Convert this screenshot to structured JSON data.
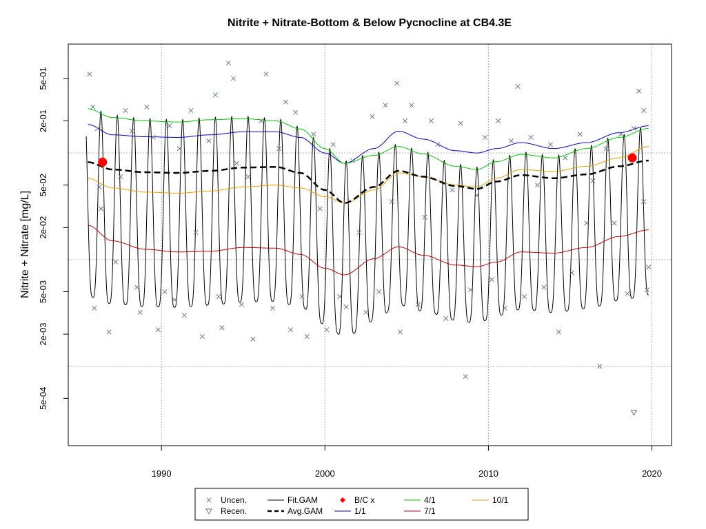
{
  "chart_data": {
    "type": "line",
    "title": "Nitrite + Nitrate-Bottom & Below Pycnocline at CB4.3E",
    "xlabel": "",
    "ylabel": "Nitrite + Nitrate [mg/L]",
    "y_scale": "log",
    "xlim": [
      1984.3,
      2021.2
    ],
    "ylim": [
      0.00018,
      1.05
    ],
    "x_ticks": [
      1990,
      2000,
      2010,
      2020
    ],
    "x_tick_labels": [
      "1990",
      "2000",
      "2010",
      "2020"
    ],
    "y_ticks": [
      0.0005,
      0.002,
      0.005,
      0.02,
      0.05,
      0.2,
      0.5
    ],
    "y_tick_labels": [
      "5e-04",
      "2e-03",
      "5e-03",
      "2e-02",
      "5e-02",
      "2e-01",
      "5e-01"
    ],
    "h_gridlines": [
      0.001,
      0.01,
      0.1
    ],
    "v_gridlines": [
      1990,
      2000,
      2010,
      2020
    ],
    "grid": true,
    "legend_position": "bottom-center",
    "colors": {
      "uncen": "#6b7a8f",
      "fit_gam": "#000000",
      "avg_gam": "#000000",
      "bc": "#ff0000",
      "d1_1": "#0000cc",
      "d4_1": "#00cc00",
      "d7_1": "#cc0000",
      "d10_1": "#e6a000"
    },
    "legend": [
      {
        "label": "Uncen.",
        "kind": "x-marker",
        "color": "#6b7a8f"
      },
      {
        "label": "Recen.",
        "kind": "triangle-marker",
        "color": "#6b7a8f"
      },
      {
        "label": "Fit.GAM",
        "kind": "solid",
        "color": "#000000"
      },
      {
        "label": "Avg.GAM",
        "kind": "dashed",
        "color": "#000000"
      },
      {
        "label": "B/C x",
        "kind": "diamond",
        "color": "#ff0000"
      },
      {
        "label": "1/1",
        "kind": "solid",
        "color": "#0000cc"
      },
      {
        "label": "4/1",
        "kind": "solid",
        "color": "#00cc00"
      },
      {
        "label": "7/1",
        "kind": "solid",
        "color": "#cc0000"
      },
      {
        "label": "10/1",
        "kind": "solid",
        "color": "#e6a000"
      }
    ],
    "series": [
      {
        "name": "1/1",
        "x": [
          1985.5,
          1987,
          1989,
          1991,
          1993,
          1995,
          1997,
          1998.5,
          2000,
          2001.2,
          2003,
          2004.5,
          2006,
          2008,
          2009.3,
          2010.5,
          2012,
          2014,
          2016,
          2018,
          2019.8
        ],
        "values": [
          0.185,
          0.148,
          0.142,
          0.14,
          0.148,
          0.158,
          0.158,
          0.14,
          0.1,
          0.08,
          0.11,
          0.16,
          0.135,
          0.105,
          0.1,
          0.11,
          0.125,
          0.11,
          0.125,
          0.155,
          0.18
        ]
      },
      {
        "name": "4/1",
        "x": [
          1985.5,
          1987,
          1989,
          1991,
          1993,
          1995,
          1997,
          1998.5,
          2000,
          2001.2,
          2003,
          2004.5,
          2006,
          2008,
          2009.3,
          2010.5,
          2012,
          2014,
          2016,
          2018,
          2019.8
        ],
        "values": [
          0.26,
          0.215,
          0.2,
          0.195,
          0.205,
          0.21,
          0.2,
          0.168,
          0.11,
          0.08,
          0.095,
          0.115,
          0.098,
          0.075,
          0.07,
          0.083,
          0.097,
          0.09,
          0.11,
          0.14,
          0.17
        ]
      },
      {
        "name": "7/1",
        "x": [
          1985.5,
          1987,
          1989,
          1991,
          1993,
          1995,
          1997,
          1998.5,
          2000,
          2001.2,
          2003,
          2004.5,
          2006,
          2008,
          2009.3,
          2010.5,
          2012,
          2014,
          2016,
          2018,
          2019.8
        ],
        "values": [
          0.021,
          0.015,
          0.0125,
          0.0118,
          0.012,
          0.013,
          0.0128,
          0.0112,
          0.0083,
          0.0072,
          0.0102,
          0.0132,
          0.011,
          0.0089,
          0.0086,
          0.0095,
          0.0118,
          0.0115,
          0.013,
          0.0165,
          0.019
        ]
      },
      {
        "name": "10/1",
        "x": [
          1985.5,
          1987,
          1989,
          1991,
          1993,
          1995,
          1997,
          1998.5,
          2000,
          2001.2,
          2003,
          2004.5,
          2006,
          2008,
          2009.3,
          2010.5,
          2012,
          2014,
          2016,
          2018,
          2019.8
        ],
        "values": [
          0.058,
          0.047,
          0.043,
          0.042,
          0.044,
          0.048,
          0.05,
          0.047,
          0.039,
          0.034,
          0.045,
          0.065,
          0.06,
          0.05,
          0.048,
          0.058,
          0.07,
          0.067,
          0.075,
          0.09,
          0.115
        ]
      },
      {
        "name": "Avg.GAM",
        "x": [
          1985.5,
          1987,
          1989,
          1991,
          1993,
          1995,
          1997,
          1998.5,
          2000,
          2001.2,
          2003,
          2004.5,
          2006,
          2008,
          2009.3,
          2010.5,
          2012,
          2014,
          2016,
          2018,
          2019.8
        ],
        "values": [
          0.082,
          0.07,
          0.066,
          0.065,
          0.068,
          0.073,
          0.074,
          0.065,
          0.045,
          0.034,
          0.048,
          0.068,
          0.06,
          0.049,
          0.046,
          0.054,
          0.062,
          0.058,
          0.063,
          0.075,
          0.085
        ]
      },
      {
        "name": "Fit.GAM",
        "seasonal": true,
        "period_years": 1,
        "peak_phase": 0.1,
        "x_start": 1985.4,
        "x_end": 2019.8,
        "upper_envelope": "4/1",
        "lower_envelope_from_avg_ratio": 0.055
      }
    ],
    "bc_points": [
      {
        "x": 1986.4,
        "y": 0.082
      },
      {
        "x": 2018.8,
        "y": 0.09
      }
    ],
    "uncensored_points": [
      {
        "x": 1985.6,
        "y": 0.55
      },
      {
        "x": 1985.8,
        "y": 0.27
      },
      {
        "x": 1986.1,
        "y": 0.17
      },
      {
        "x": 1986.2,
        "y": 0.048
      },
      {
        "x": 1985.9,
        "y": 0.0035
      },
      {
        "x": 1986.3,
        "y": 0.03
      },
      {
        "x": 1986.8,
        "y": 0.0021
      },
      {
        "x": 1987.2,
        "y": 0.0095
      },
      {
        "x": 1987.5,
        "y": 0.06
      },
      {
        "x": 1987.8,
        "y": 0.25
      },
      {
        "x": 1988.2,
        "y": 0.16
      },
      {
        "x": 1988.5,
        "y": 0.0055
      },
      {
        "x": 1988.7,
        "y": 0.0032
      },
      {
        "x": 1989.1,
        "y": 0.27
      },
      {
        "x": 1989.5,
        "y": 0.14
      },
      {
        "x": 1989.8,
        "y": 0.0022
      },
      {
        "x": 1990.2,
        "y": 0.005
      },
      {
        "x": 1990.5,
        "y": 0.18
      },
      {
        "x": 1990.8,
        "y": 0.0042
      },
      {
        "x": 1991.1,
        "y": 0.11
      },
      {
        "x": 1991.4,
        "y": 0.003
      },
      {
        "x": 1991.8,
        "y": 0.25
      },
      {
        "x": 1992.1,
        "y": 0.018
      },
      {
        "x": 1992.5,
        "y": 0.0019
      },
      {
        "x": 1992.9,
        "y": 0.13
      },
      {
        "x": 1993.3,
        "y": 0.35
      },
      {
        "x": 1993.5,
        "y": 0.0045
      },
      {
        "x": 1993.7,
        "y": 0.0023
      },
      {
        "x": 1994.1,
        "y": 0.7
      },
      {
        "x": 1994.4,
        "y": 0.5
      },
      {
        "x": 1994.6,
        "y": 0.08
      },
      {
        "x": 1994.9,
        "y": 0.0038
      },
      {
        "x": 1995.3,
        "y": 0.06
      },
      {
        "x": 1995.6,
        "y": 0.0018
      },
      {
        "x": 1996.1,
        "y": 0.2
      },
      {
        "x": 1996.4,
        "y": 0.55
      },
      {
        "x": 1996.8,
        "y": 0.0035
      },
      {
        "x": 1997.2,
        "y": 0.11
      },
      {
        "x": 1997.6,
        "y": 0.3
      },
      {
        "x": 1997.9,
        "y": 0.0022
      },
      {
        "x": 1998.2,
        "y": 0.24
      },
      {
        "x": 1998.6,
        "y": 0.0045
      },
      {
        "x": 1998.9,
        "y": 0.0019
      },
      {
        "x": 1999.3,
        "y": 0.15
      },
      {
        "x": 1999.7,
        "y": 0.03
      },
      {
        "x": 2000.1,
        "y": 0.0022
      },
      {
        "x": 2000.5,
        "y": 0.12
      },
      {
        "x": 2000.9,
        "y": 0.0045
      },
      {
        "x": 2001.3,
        "y": 0.0036
      },
      {
        "x": 2001.7,
        "y": 0.085
      },
      {
        "x": 2002.1,
        "y": 0.018
      },
      {
        "x": 2002.5,
        "y": 0.0032
      },
      {
        "x": 2002.9,
        "y": 0.22
      },
      {
        "x": 2003.3,
        "y": 0.005
      },
      {
        "x": 2003.7,
        "y": 0.28
      },
      {
        "x": 2004.1,
        "y": 0.035
      },
      {
        "x": 2004.4,
        "y": 0.45
      },
      {
        "x": 2004.6,
        "y": 0.0021
      },
      {
        "x": 2004.9,
        "y": 0.2
      },
      {
        "x": 2005.3,
        "y": 0.28
      },
      {
        "x": 2005.7,
        "y": 0.0038
      },
      {
        "x": 2006.1,
        "y": 0.025
      },
      {
        "x": 2006.5,
        "y": 0.2
      },
      {
        "x": 2006.9,
        "y": 0.12
      },
      {
        "x": 2007.4,
        "y": 0.0028
      },
      {
        "x": 2007.8,
        "y": 0.045
      },
      {
        "x": 2008.3,
        "y": 0.19
      },
      {
        "x": 2008.6,
        "y": 0.0008
      },
      {
        "x": 2008.9,
        "y": 0.0052
      },
      {
        "x": 2009.3,
        "y": 0.04
      },
      {
        "x": 2009.8,
        "y": 0.14
      },
      {
        "x": 2010.2,
        "y": 0.0065
      },
      {
        "x": 2010.6,
        "y": 0.2
      },
      {
        "x": 2011.0,
        "y": 0.0035
      },
      {
        "x": 2011.4,
        "y": 0.13
      },
      {
        "x": 2011.8,
        "y": 0.42
      },
      {
        "x": 2012.2,
        "y": 0.0045
      },
      {
        "x": 2012.6,
        "y": 0.14
      },
      {
        "x": 2013.0,
        "y": 0.05
      },
      {
        "x": 2013.4,
        "y": 0.0055
      },
      {
        "x": 2013.8,
        "y": 0.12
      },
      {
        "x": 2014.3,
        "y": 0.0021
      },
      {
        "x": 2014.7,
        "y": 0.09
      },
      {
        "x": 2015.1,
        "y": 0.0075
      },
      {
        "x": 2015.6,
        "y": 0.15
      },
      {
        "x": 2016.0,
        "y": 0.022
      },
      {
        "x": 2016.4,
        "y": 0.055
      },
      {
        "x": 2016.8,
        "y": 0.001
      },
      {
        "x": 2017.2,
        "y": 0.11
      },
      {
        "x": 2017.7,
        "y": 0.022
      },
      {
        "x": 2018.1,
        "y": 0.15
      },
      {
        "x": 2018.5,
        "y": 0.0048
      },
      {
        "x": 2018.9,
        "y": 0.17
      },
      {
        "x": 2019.2,
        "y": 0.38
      },
      {
        "x": 2019.5,
        "y": 0.25
      },
      {
        "x": 2019.7,
        "y": 0.0052
      },
      {
        "x": 2019.8,
        "y": 0.0085
      },
      {
        "x": 2019.5,
        "y": 0.035
      }
    ],
    "recensored_points": [
      {
        "x": 2018.9,
        "y": 0.00037
      }
    ]
  }
}
